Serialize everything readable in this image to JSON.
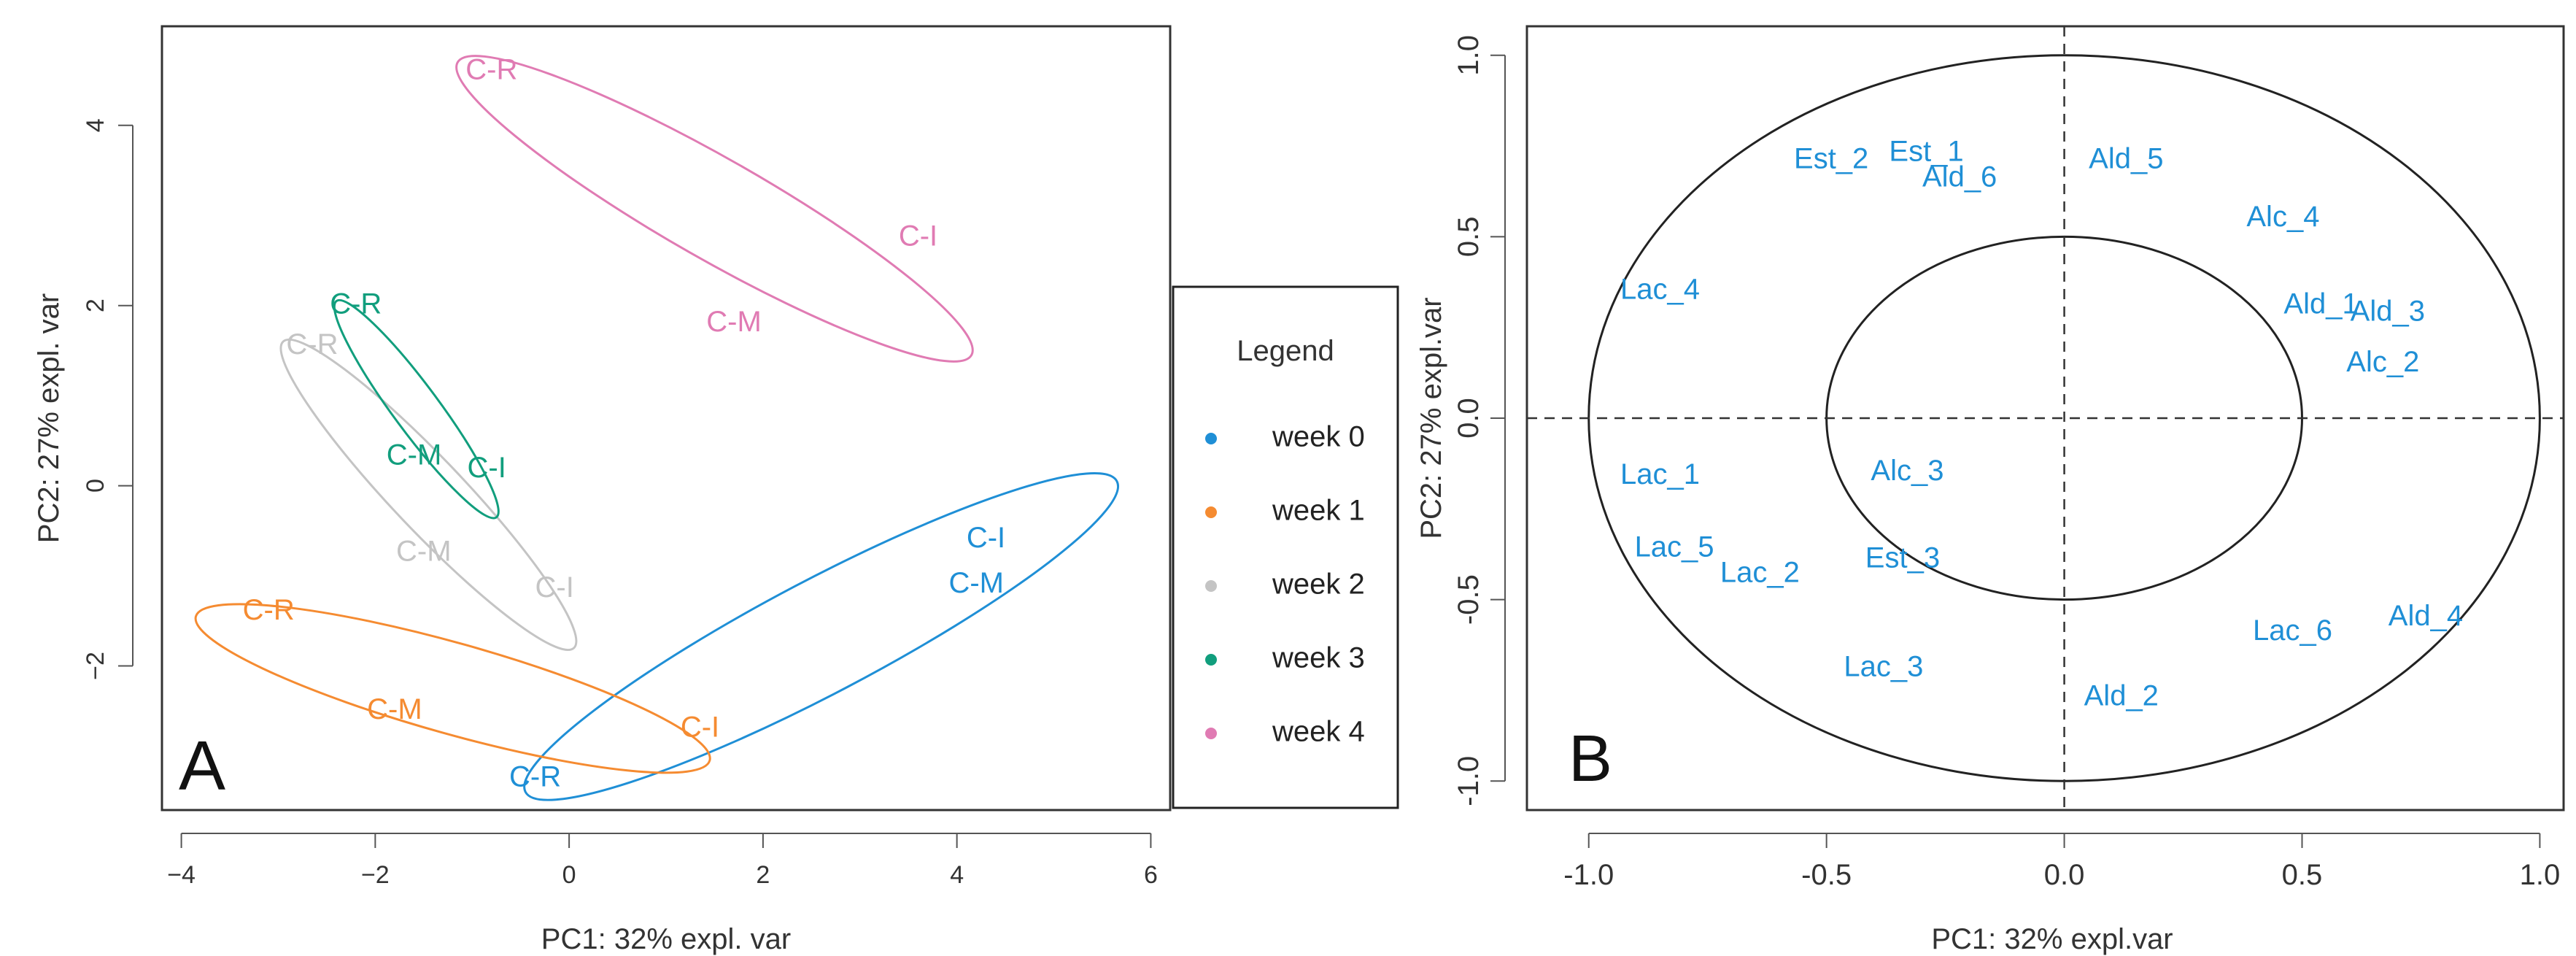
{
  "chart_data": [
    {
      "type": "scatter",
      "panel": "A",
      "panel_label": "A",
      "xlabel": "PC1: 32% expl. var",
      "ylabel": "PC2: 27% expl. var",
      "xlim": [
        -4.2,
        6.2
      ],
      "ylim": [
        -3.6,
        5.1
      ],
      "xticks": [
        -4,
        -2,
        0,
        2,
        4,
        6
      ],
      "yticks": [
        -2,
        0,
        2,
        4
      ],
      "legend": {
        "title": "Legend",
        "position": "right",
        "entries": [
          {
            "label": "week 0",
            "color": "#1f8fd6"
          },
          {
            "label": "week 1",
            "color": "#f58b31"
          },
          {
            "label": "week 2",
            "color": "#c4c4c4"
          },
          {
            "label": "week 3",
            "color": "#119e7d"
          },
          {
            "label": "week 4",
            "color": "#e07bb3"
          }
        ]
      },
      "series": [
        {
          "name": "week 0",
          "color": "#1f8fd6",
          "points": [
            {
              "label": "C-I",
              "x": 4.3,
              "y": -0.6
            },
            {
              "label": "C-M",
              "x": 4.2,
              "y": -1.1
            },
            {
              "label": "C-R",
              "x": -0.35,
              "y": -3.25
            }
          ],
          "ellipse": [
            [
              -0.45,
              -3.4
            ],
            [
              5.65,
              0.05
            ]
          ]
        },
        {
          "name": "week 1",
          "color": "#f58b31",
          "points": [
            {
              "label": "C-R",
              "x": -3.1,
              "y": -1.4
            },
            {
              "label": "C-M",
              "x": -1.8,
              "y": -2.5
            },
            {
              "label": "C-I",
              "x": 1.35,
              "y": -2.7
            }
          ],
          "ellipse": [
            [
              -3.85,
              -1.45
            ],
            [
              1.45,
              -3.05
            ]
          ]
        },
        {
          "name": "week 2",
          "color": "#c4c4c4",
          "points": [
            {
              "label": "C-R",
              "x": -2.65,
              "y": 1.55
            },
            {
              "label": "C-M",
              "x": -1.5,
              "y": -0.75
            },
            {
              "label": "C-I",
              "x": -0.15,
              "y": -1.15
            }
          ],
          "ellipse": [
            [
              -2.95,
              1.6
            ],
            [
              0.05,
              -1.8
            ]
          ]
        },
        {
          "name": "week 3",
          "color": "#119e7d",
          "points": [
            {
              "label": "C-R",
              "x": -2.2,
              "y": 2.0
            },
            {
              "label": "C-M",
              "x": -1.6,
              "y": 0.32
            },
            {
              "label": "C-I",
              "x": -0.85,
              "y": 0.18
            }
          ],
          "ellipse": [
            [
              -2.4,
              2.05
            ],
            [
              -0.75,
              -0.35
            ]
          ]
        },
        {
          "name": "week 4",
          "color": "#e07bb3",
          "points": [
            {
              "label": "C-R",
              "x": -0.8,
              "y": 4.6
            },
            {
              "label": "C-I",
              "x": 3.6,
              "y": 2.75
            },
            {
              "label": "C-M",
              "x": 1.7,
              "y": 1.8
            }
          ],
          "ellipse": [
            [
              -1.15,
              4.7
            ],
            [
              4.15,
              1.45
            ]
          ]
        }
      ]
    },
    {
      "type": "scatter",
      "panel": "B",
      "panel_label": "B",
      "xlabel": "PC1: 32% expl.var",
      "ylabel": "PC2: 27% expl.var",
      "xlim": [
        -1.13,
        1.05
      ],
      "ylim": [
        -1.08,
        1.08
      ],
      "xticks": [
        -1.0,
        -0.5,
        0.0,
        0.5,
        1.0
      ],
      "yticks": [
        -1.0,
        -0.5,
        0.0,
        0.5,
        1.0
      ],
      "tick_labels": [
        "-1.0",
        "-0.5",
        "0.0",
        "0.5",
        "1.0"
      ],
      "circles": [
        1.0,
        0.5
      ],
      "point_color": "#1f8fd6",
      "points": [
        {
          "label": "Est_2",
          "x": -0.49,
          "y": 0.71
        },
        {
          "label": "Est_1",
          "x": -0.29,
          "y": 0.73
        },
        {
          "label": "Ald_6",
          "x": -0.22,
          "y": 0.66
        },
        {
          "label": "Ald_5",
          "x": 0.13,
          "y": 0.71
        },
        {
          "label": "Alc_4",
          "x": 0.46,
          "y": 0.55
        },
        {
          "label": "Lac_4",
          "x": -0.85,
          "y": 0.35
        },
        {
          "label": "Ald_1",
          "x": 0.54,
          "y": 0.31
        },
        {
          "label": "Ald_3",
          "x": 0.68,
          "y": 0.29
        },
        {
          "label": "Alc_2",
          "x": 0.67,
          "y": 0.15
        },
        {
          "label": "Lac_1",
          "x": -0.85,
          "y": -0.16
        },
        {
          "label": "Alc_3",
          "x": -0.33,
          "y": -0.15
        },
        {
          "label": "Lac_5",
          "x": -0.82,
          "y": -0.36
        },
        {
          "label": "Lac_2",
          "x": -0.64,
          "y": -0.43
        },
        {
          "label": "Est_3",
          "x": -0.34,
          "y": -0.39
        },
        {
          "label": "Lac_6",
          "x": 0.48,
          "y": -0.59
        },
        {
          "label": "Ald_4",
          "x": 0.76,
          "y": -0.55
        },
        {
          "label": "Lac_3",
          "x": -0.38,
          "y": -0.69
        },
        {
          "label": "Ald_2",
          "x": 0.12,
          "y": -0.77
        }
      ]
    }
  ]
}
